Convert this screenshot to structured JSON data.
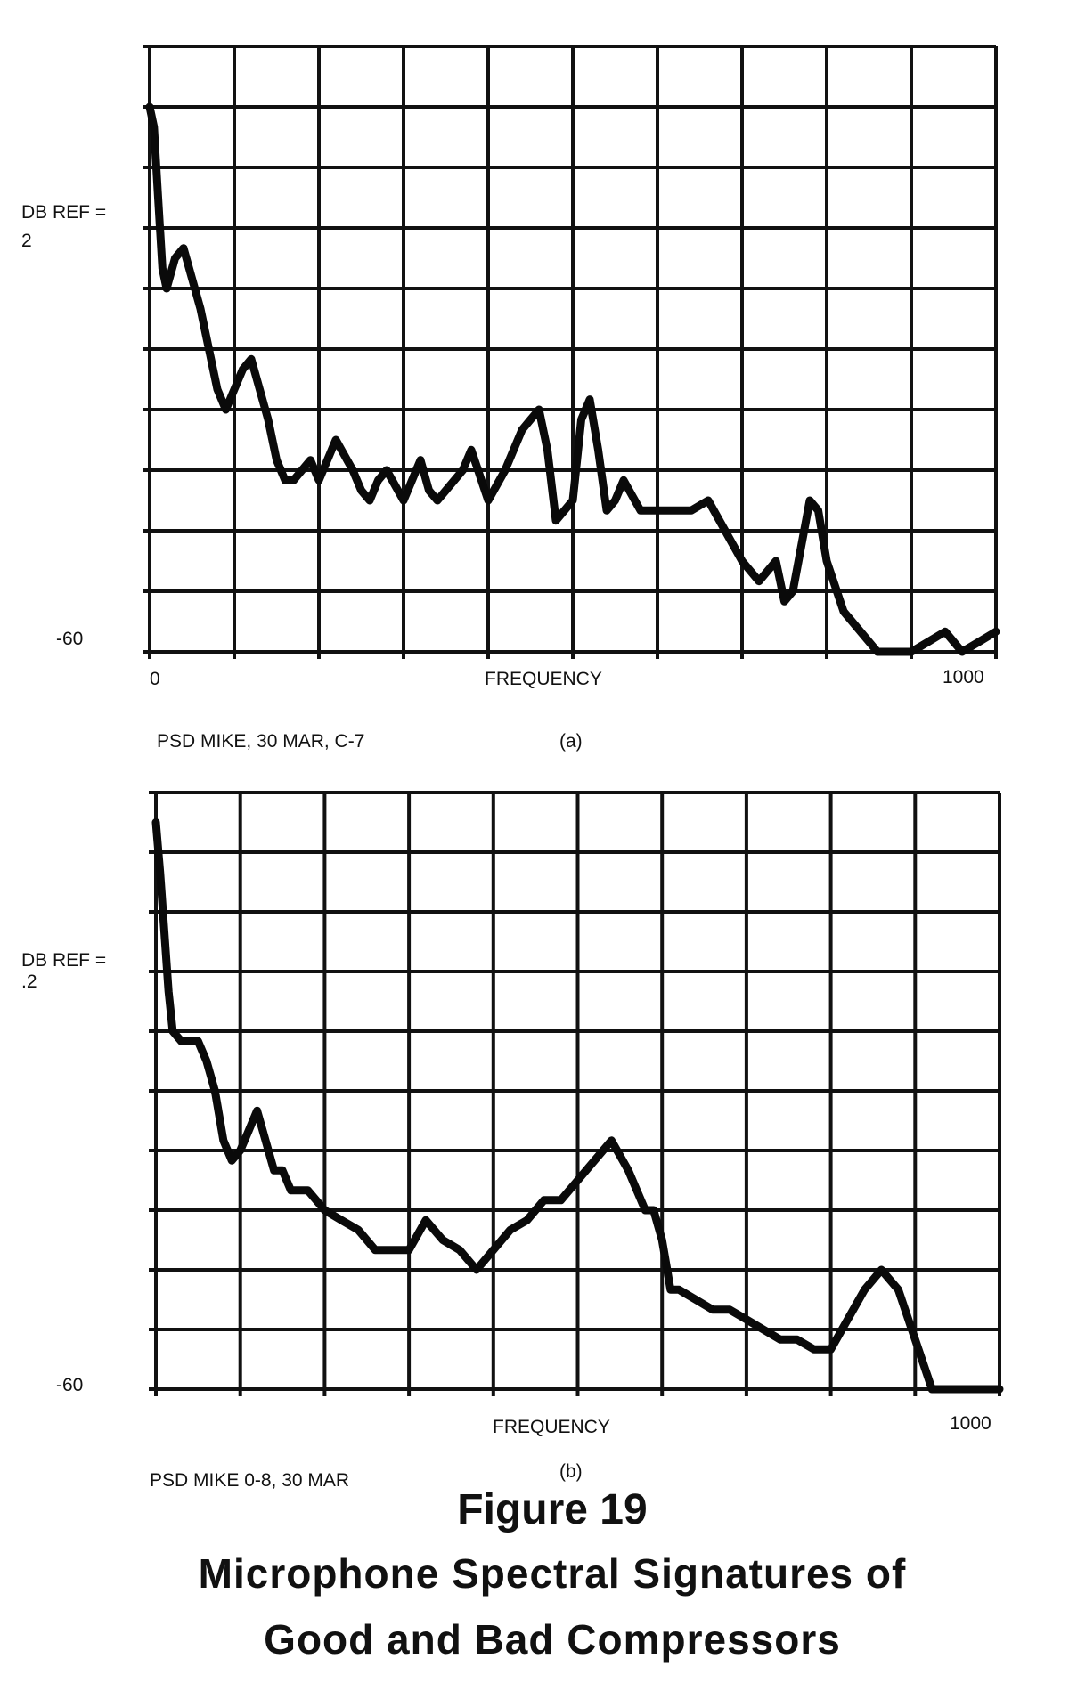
{
  "figure": {
    "number": "Figure 19",
    "title_line1": "Microphone Spectral Signatures of",
    "title_line2": "Good and Bad Compressors"
  },
  "chart_data": [
    {
      "type": "line",
      "panel_label": "(a)",
      "source_text": "PSD MIKE, 30 MAR, C-7",
      "ylabel_line1": "DB REF =",
      "ylabel_line2": "2",
      "y_bottom_label": "-60",
      "x_start_label": "0",
      "xlabel": "FREQUENCY",
      "x_end_label": "1000",
      "xlim": [
        0,
        1000
      ],
      "ylim": [
        -60,
        0
      ],
      "grid": true,
      "series": [
        {
          "x": [
            0,
            5,
            10,
            15,
            20,
            30,
            40,
            50,
            60,
            70,
            80,
            90,
            100,
            110,
            120,
            130,
            140,
            150,
            160,
            170,
            180,
            190,
            200,
            220,
            240,
            250,
            260,
            270,
            280,
            300,
            320,
            330,
            340,
            350,
            370,
            380,
            400,
            420,
            440,
            450,
            460,
            470,
            480,
            500,
            510,
            520,
            530,
            540,
            550,
            560,
            580,
            600,
            620,
            640,
            660,
            680,
            700,
            720,
            740,
            750,
            760,
            780,
            790,
            800,
            820,
            840,
            860,
            880,
            900,
            920,
            940,
            960,
            980,
            1000
          ],
          "y": [
            -6,
            -8,
            -15,
            -22,
            -24,
            -21,
            -20,
            -23,
            -26,
            -30,
            -34,
            -36,
            -34,
            -32,
            -31,
            -34,
            -37,
            -41,
            -43,
            -43,
            -42,
            -41,
            -43,
            -39,
            -42,
            -44,
            -45,
            -43,
            -42,
            -45,
            -41,
            -44,
            -45,
            -44,
            -42,
            -40,
            -45,
            -42,
            -38,
            -37,
            -36,
            -40,
            -47,
            -45,
            -37,
            -35,
            -40,
            -46,
            -45,
            -43,
            -46,
            -46,
            -46,
            -46,
            -45,
            -48,
            -51,
            -53,
            -51,
            -55,
            -54,
            -45,
            -46,
            -51,
            -56,
            -58,
            -60,
            -60,
            -60,
            -59,
            -58,
            -60,
            -59,
            -58
          ]
        }
      ]
    },
    {
      "type": "line",
      "panel_label": "(b)",
      "source_text": "PSD MIKE 0-8, 30 MAR",
      "ylabel_line1": "DB REF =",
      "ylabel_line2": ".2",
      "y_bottom_label": "-60",
      "xlabel": "FREQUENCY",
      "x_end_label": "1000",
      "xlim": [
        0,
        1000
      ],
      "ylim": [
        -60,
        0
      ],
      "grid": true,
      "series": [
        {
          "x": [
            0,
            5,
            10,
            15,
            20,
            30,
            40,
            50,
            60,
            70,
            80,
            90,
            100,
            110,
            120,
            130,
            140,
            150,
            160,
            170,
            180,
            190,
            200,
            220,
            240,
            260,
            280,
            300,
            320,
            340,
            360,
            380,
            400,
            420,
            440,
            460,
            480,
            500,
            520,
            540,
            560,
            580,
            590,
            600,
            610,
            620,
            640,
            660,
            680,
            700,
            720,
            740,
            760,
            780,
            800,
            820,
            840,
            860,
            880,
            900,
            920,
            940,
            960,
            980,
            1000
          ],
          "y": [
            -3,
            -8,
            -14,
            -20,
            -24,
            -25,
            -25,
            -25,
            -27,
            -30,
            -35,
            -37,
            -36,
            -34,
            -32,
            -35,
            -38,
            -38,
            -40,
            -40,
            -40,
            -41,
            -42,
            -43,
            -44,
            -46,
            -46,
            -46,
            -43,
            -45,
            -46,
            -48,
            -46,
            -44,
            -43,
            -41,
            -41,
            -39,
            -37,
            -35,
            -38,
            -42,
            -42,
            -45,
            -50,
            -50,
            -51,
            -52,
            -52,
            -53,
            -54,
            -55,
            -55,
            -56,
            -56,
            -53,
            -50,
            -48,
            -50,
            -55,
            -60,
            -60,
            -60,
            -60,
            -60
          ]
        }
      ]
    }
  ]
}
